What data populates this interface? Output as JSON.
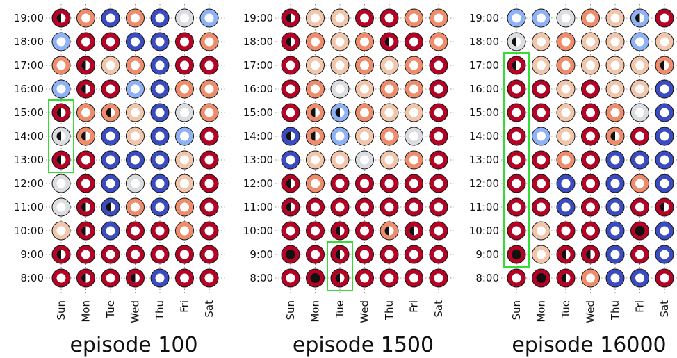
{
  "colors": {
    "c0": "#3a4cc0",
    "c1": "#8fb2f7",
    "c2": "#dcdde0",
    "c3": "#f2c6ab",
    "c4": "#ee8c6c",
    "c5": "#b40426",
    "selection": "#33dd33"
  },
  "chart_data": [
    {
      "type": "heatmap",
      "title": "episode 100",
      "days": [
        "Sun",
        "Mon",
        "Tue",
        "Wed",
        "Thu",
        "Fri",
        "Sat"
      ],
      "hours": [
        "19:00",
        "18:00",
        "17:00",
        "16:00",
        "15:00",
        "14:00",
        "13:00",
        "12:00",
        "11:00",
        "10:00",
        "9:00",
        "8:00"
      ],
      "color_level": [
        [
          5,
          4,
          0,
          4,
          0,
          2,
          1
        ],
        [
          1,
          5,
          5,
          0,
          0,
          5,
          4
        ],
        [
          4,
          5,
          3,
          4,
          0,
          5,
          5
        ],
        [
          1,
          5,
          5,
          1,
          0,
          4,
          4
        ],
        [
          5,
          4,
          4,
          3,
          0,
          2,
          4
        ],
        [
          2,
          4,
          0,
          3,
          0,
          1,
          5
        ],
        [
          5,
          5,
          0,
          0,
          0,
          3,
          5
        ],
        [
          2,
          5,
          0,
          2,
          0,
          3,
          5
        ],
        [
          2,
          5,
          0,
          4,
          0,
          4,
          5
        ],
        [
          3,
          5,
          0,
          5,
          5,
          4,
          5
        ],
        [
          5,
          5,
          5,
          5,
          5,
          5,
          5
        ],
        [
          5,
          5,
          5,
          5,
          0,
          5,
          5
        ]
      ],
      "marker_fill": [
        [
          0.5,
          0,
          0,
          0,
          0,
          0,
          0
        ],
        [
          0,
          0,
          0,
          0,
          0,
          0,
          0
        ],
        [
          0,
          0.5,
          0,
          0,
          0,
          0,
          0
        ],
        [
          0,
          0.5,
          0,
          0,
          0,
          0,
          0
        ],
        [
          0.5,
          0,
          0.5,
          0,
          0,
          0,
          0
        ],
        [
          0.5,
          0.5,
          0,
          0,
          0,
          0,
          0
        ],
        [
          0.5,
          0,
          0,
          0,
          0,
          0,
          0
        ],
        [
          0,
          0,
          0,
          0,
          0,
          0,
          0
        ],
        [
          0,
          0.5,
          0.5,
          0,
          0,
          0,
          0
        ],
        [
          0,
          0.5,
          0,
          0,
          0,
          0,
          0
        ],
        [
          0.5,
          0,
          0,
          0,
          0,
          0,
          0
        ],
        [
          0,
          0.5,
          0,
          0.5,
          0,
          0,
          0
        ]
      ],
      "highlight": {
        "day": "Sun",
        "hours": [
          "15:00",
          "14:00",
          "13:00"
        ]
      }
    },
    {
      "type": "heatmap",
      "title": "episode 1500",
      "days": [
        "Sun",
        "Mon",
        "Tue",
        "Wed",
        "Thu",
        "Fri",
        "Sat"
      ],
      "hours": [
        "19:00",
        "18:00",
        "17:00",
        "16:00",
        "15:00",
        "14:00",
        "13:00",
        "12:00",
        "11:00",
        "10:00",
        "9:00",
        "8:00"
      ],
      "color_level": [
        [
          5,
          3,
          3,
          5,
          5,
          4,
          4
        ],
        [
          5,
          4,
          3,
          4,
          5,
          5,
          4
        ],
        [
          5,
          3,
          3,
          4,
          3,
          4,
          5
        ],
        [
          5,
          4,
          2,
          3,
          4,
          4,
          5
        ],
        [
          5,
          4,
          1,
          4,
          3,
          3,
          5
        ],
        [
          0,
          4,
          1,
          3,
          4,
          2,
          5
        ],
        [
          0,
          3,
          3,
          2,
          3,
          4,
          5
        ],
        [
          5,
          4,
          5,
          5,
          5,
          5,
          5
        ],
        [
          5,
          5,
          5,
          5,
          5,
          5,
          5
        ],
        [
          5,
          5,
          5,
          5,
          4,
          5,
          5
        ],
        [
          5,
          5,
          5,
          5,
          5,
          5,
          5
        ],
        [
          5,
          5,
          5,
          5,
          5,
          5,
          5
        ]
      ],
      "marker_fill": [
        [
          0.5,
          0,
          0,
          0,
          0,
          0,
          0
        ],
        [
          0.5,
          0,
          0,
          0,
          0.5,
          0,
          0
        ],
        [
          0,
          0,
          0,
          0,
          0,
          0,
          0
        ],
        [
          0,
          0,
          0,
          0,
          0,
          0,
          0
        ],
        [
          0,
          0.5,
          0.5,
          0,
          0,
          0,
          0
        ],
        [
          0.5,
          0.5,
          0,
          0,
          0,
          0,
          0
        ],
        [
          0,
          0,
          0,
          0,
          0,
          0,
          0
        ],
        [
          0.5,
          0,
          0,
          0,
          0,
          0,
          0
        ],
        [
          0.5,
          0,
          0,
          0,
          0,
          0,
          0
        ],
        [
          0,
          0,
          0.5,
          0,
          0.5,
          0.5,
          0
        ],
        [
          1,
          0,
          0.5,
          0,
          0,
          0,
          0
        ],
        [
          0,
          1,
          0.5,
          0,
          0,
          0,
          0
        ]
      ],
      "highlight": {
        "day": "Tue",
        "hours": [
          "9:00",
          "8:00"
        ]
      }
    },
    {
      "type": "heatmap",
      "title": "episode 16000",
      "days": [
        "Sun",
        "Mon",
        "Tue",
        "Wed",
        "Thu",
        "Fri",
        "Sat"
      ],
      "hours": [
        "19:00",
        "18:00",
        "17:00",
        "16:00",
        "15:00",
        "14:00",
        "13:00",
        "12:00",
        "11:00",
        "10:00",
        "9:00",
        "8:00"
      ],
      "color_level": [
        [
          1,
          1,
          2,
          4,
          3,
          1,
          5
        ],
        [
          2,
          3,
          4,
          3,
          3,
          1,
          3
        ],
        [
          5,
          3,
          4,
          3,
          3,
          3,
          4
        ],
        [
          5,
          5,
          3,
          5,
          3,
          3,
          0
        ],
        [
          5,
          5,
          3,
          5,
          4,
          2,
          0
        ],
        [
          5,
          1,
          3,
          5,
          4,
          5,
          0
        ],
        [
          5,
          5,
          4,
          5,
          0,
          0,
          0
        ],
        [
          5,
          5,
          0,
          5,
          0,
          4,
          0
        ],
        [
          5,
          5,
          0,
          5,
          0,
          5,
          5
        ],
        [
          5,
          3,
          5,
          5,
          0,
          5,
          0
        ],
        [
          5,
          3,
          5,
          5,
          0,
          5,
          0
        ],
        [
          5,
          5,
          5,
          4,
          0,
          0,
          5
        ]
      ],
      "marker_fill": [
        [
          0,
          0,
          0,
          0,
          0,
          0.5,
          0
        ],
        [
          0.5,
          0,
          0,
          0,
          0,
          0,
          0
        ],
        [
          0.5,
          0,
          0,
          0,
          0,
          0,
          0.5
        ],
        [
          0,
          0,
          0,
          0,
          0,
          0,
          0
        ],
        [
          0,
          0,
          0,
          0,
          0,
          0,
          0
        ],
        [
          0,
          0,
          0,
          0,
          0.5,
          0,
          0
        ],
        [
          0,
          0,
          0,
          0,
          0,
          0,
          0
        ],
        [
          0,
          0,
          0,
          0,
          0,
          0,
          0
        ],
        [
          0,
          0,
          0,
          0,
          0,
          0,
          0.5
        ],
        [
          0,
          0,
          0,
          0,
          0,
          1,
          0
        ],
        [
          1,
          0,
          0.5,
          0.5,
          0,
          0,
          0
        ],
        [
          0,
          1,
          0.5,
          0,
          0,
          0,
          0
        ]
      ],
      "highlight": {
        "day": "Sun",
        "hours": [
          "17:00",
          "16:00",
          "15:00",
          "14:00",
          "13:00",
          "12:00",
          "11:00",
          "10:00",
          "9:00"
        ]
      }
    }
  ]
}
